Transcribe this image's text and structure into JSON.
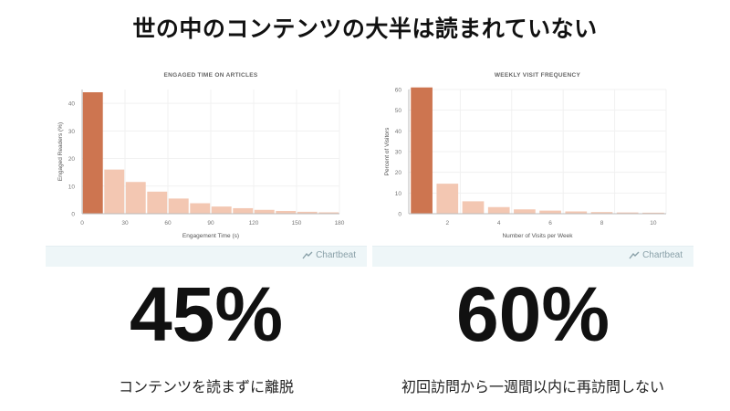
{
  "page": {
    "title": "世の中のコンテンツの大半は読まれていない"
  },
  "colors": {
    "highlight_bar": "#cd7550",
    "light_bar": "#f3c7b2",
    "axis": "#bbbbbb",
    "grid": "#f1f1f1",
    "footer_bg": "#eef6f8",
    "brand_text": "#8aa1a9"
  },
  "brand": {
    "label": "Chartbeat",
    "icon": "chartbeat-logo-icon"
  },
  "stats": {
    "left": {
      "value": "45%",
      "caption": "コンテンツを読まずに離脱"
    },
    "right": {
      "value": "60%",
      "caption": "初回訪問から一週間以内に再訪問しない"
    }
  },
  "chart_data": [
    {
      "type": "bar",
      "title": "ENGAGED TIME ON ARTICLES",
      "xlabel": "Engagement Time (s)",
      "ylabel": "Engaged Readers (%)",
      "ylim": [
        0,
        45
      ],
      "yticks": [
        0,
        10,
        20,
        30,
        40
      ],
      "xlim": [
        0,
        180
      ],
      "xticks": [
        0,
        30,
        60,
        90,
        120,
        150,
        180
      ],
      "bin_width": 15,
      "x": [
        0,
        15,
        30,
        45,
        60,
        75,
        90,
        105,
        120,
        135,
        150,
        165
      ],
      "values": [
        44,
        16,
        11.5,
        8,
        5.5,
        3.8,
        2.6,
        2,
        1.4,
        1,
        0.7,
        0.5
      ],
      "highlight_index": 0,
      "grid": true
    },
    {
      "type": "bar",
      "title": "WEEKLY VISIT FREQUENCY",
      "xlabel": "Number of Visits per Week",
      "ylabel": "Percent of Visitors",
      "ylim": [
        0,
        60
      ],
      "yticks": [
        0,
        10,
        20,
        30,
        40,
        50,
        60
      ],
      "xticks": [
        2,
        4,
        6,
        8,
        10
      ],
      "categories": [
        1,
        2,
        3,
        4,
        5,
        6,
        7,
        8,
        9,
        10
      ],
      "values": [
        61,
        14.5,
        6,
        3.2,
        2.1,
        1.5,
        1.1,
        0.8,
        0.6,
        0.5
      ],
      "highlight_index": 0,
      "grid": true
    }
  ]
}
